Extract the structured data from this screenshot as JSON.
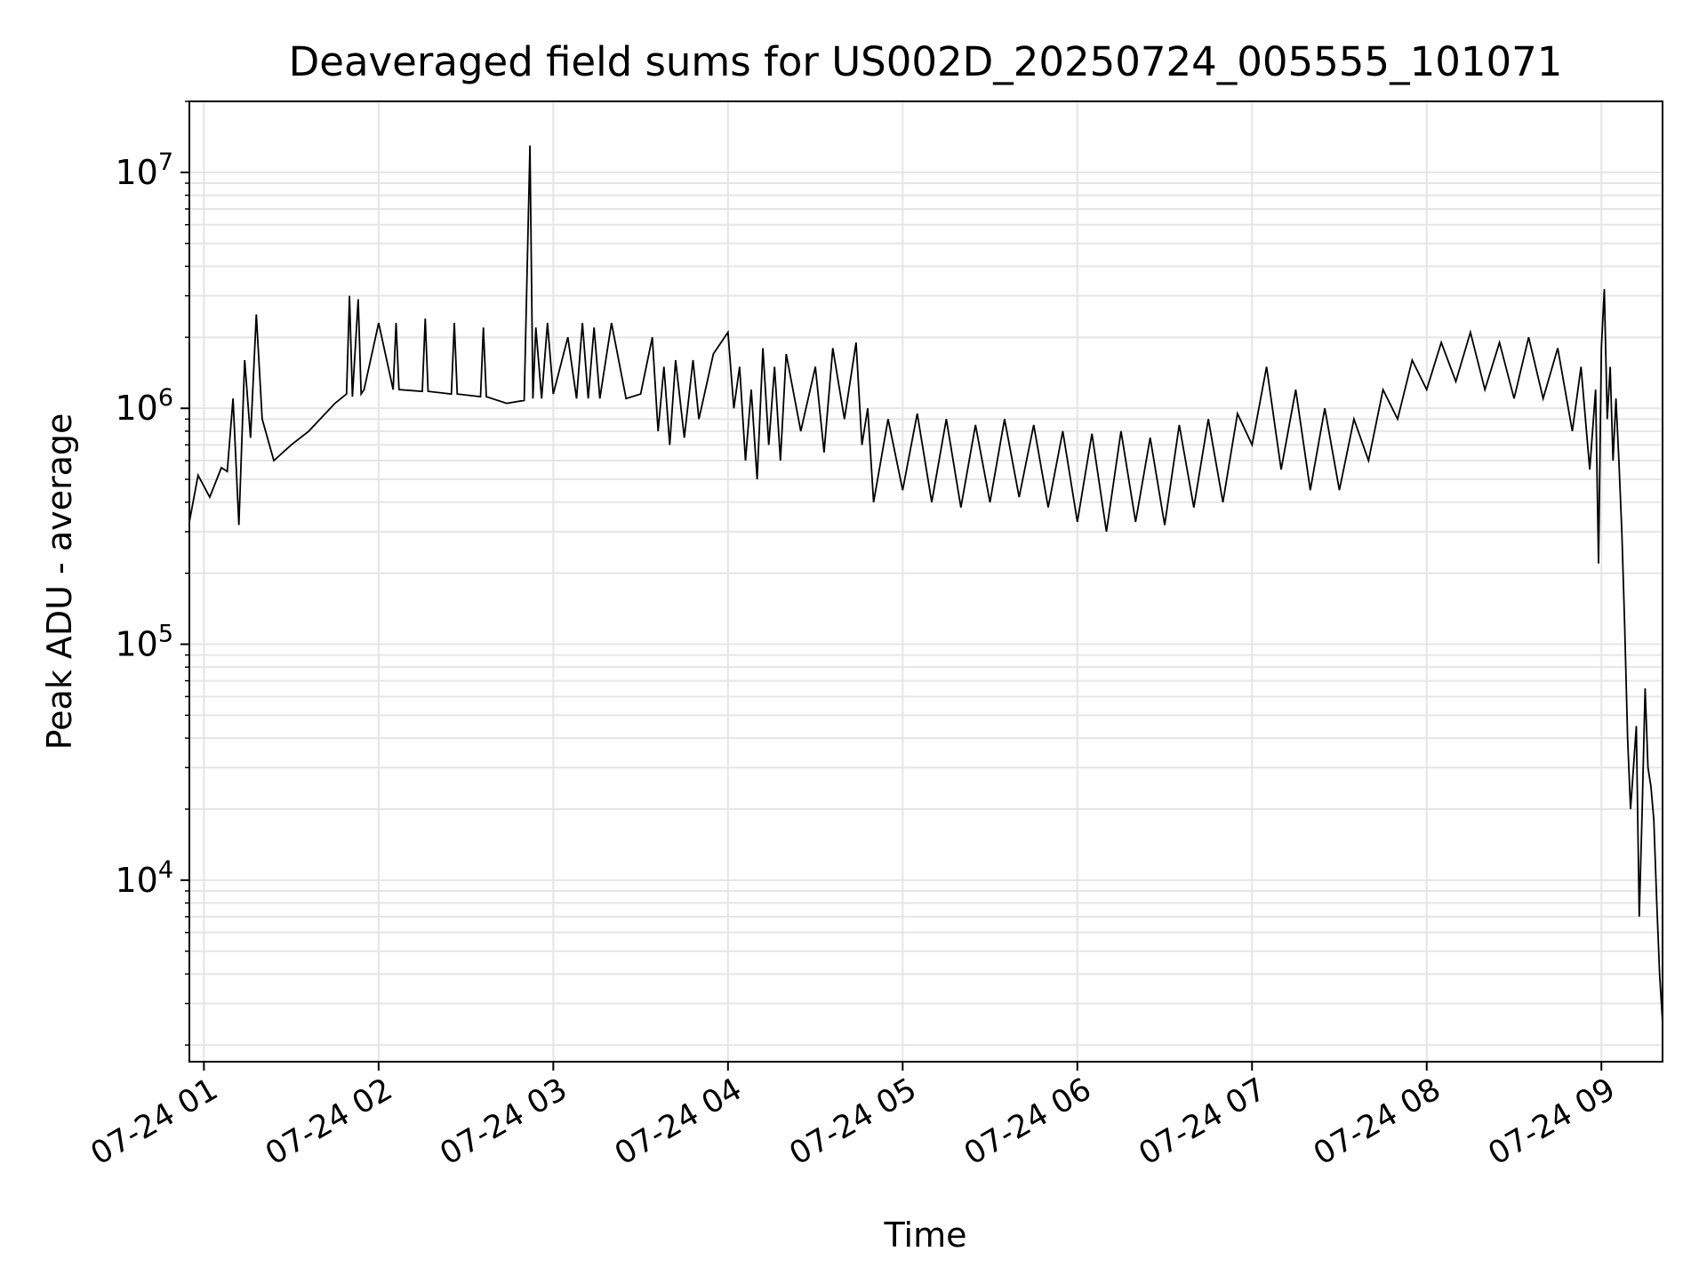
{
  "chart_data": {
    "type": "line",
    "title": "Deaveraged field sums for US002D_20250724_005555_101071",
    "xlabel": "Time",
    "ylabel": "Peak ADU - average",
    "yscale": "log",
    "grid": true,
    "legend": "none",
    "line_color": "#000000",
    "grid_color": "#e5e5e5",
    "xlim": [
      "2025-07-24 00:55",
      "2025-07-24 09:21"
    ],
    "ylim": [
      1700,
      20000000
    ],
    "x_ticks": [
      {
        "label": "07-24 01",
        "time": "2025-07-24 01:00"
      },
      {
        "label": "07-24 02",
        "time": "2025-07-24 02:00"
      },
      {
        "label": "07-24 03",
        "time": "2025-07-24 03:00"
      },
      {
        "label": "07-24 04",
        "time": "2025-07-24 04:00"
      },
      {
        "label": "07-24 05",
        "time": "2025-07-24 05:00"
      },
      {
        "label": "07-24 06",
        "time": "2025-07-24 06:00"
      },
      {
        "label": "07-24 07",
        "time": "2025-07-24 07:00"
      },
      {
        "label": "07-24 08",
        "time": "2025-07-24 08:00"
      },
      {
        "label": "07-24 09",
        "time": "2025-07-24 09:00"
      }
    ],
    "y_ticks": [
      {
        "base": "10",
        "exp": "4",
        "value": 10000
      },
      {
        "base": "10",
        "exp": "5",
        "value": 100000
      },
      {
        "base": "10",
        "exp": "6",
        "value": 1000000
      },
      {
        "base": "10",
        "exp": "7",
        "value": 10000000
      }
    ],
    "series": [
      {
        "x": [
          "2025-07-24 00:55",
          "2025-07-24 00:58",
          "2025-07-24 01:02",
          "2025-07-24 01:06",
          "2025-07-24 01:08",
          "2025-07-24 01:10",
          "2025-07-24 01:12",
          "2025-07-24 01:14",
          "2025-07-24 01:16",
          "2025-07-24 01:18",
          "2025-07-24 01:20",
          "2025-07-24 01:24",
          "2025-07-24 01:30",
          "2025-07-24 01:36",
          "2025-07-24 01:45",
          "2025-07-24 01:49",
          "2025-07-24 01:50",
          "2025-07-24 01:51",
          "2025-07-24 01:53",
          "2025-07-24 01:54",
          "2025-07-24 01:55",
          "2025-07-24 02:00",
          "2025-07-24 02:05",
          "2025-07-24 02:06",
          "2025-07-24 02:07",
          "2025-07-24 02:15",
          "2025-07-24 02:16",
          "2025-07-24 02:17",
          "2025-07-24 02:25",
          "2025-07-24 02:26",
          "2025-07-24 02:27",
          "2025-07-24 02:35",
          "2025-07-24 02:36",
          "2025-07-24 02:37",
          "2025-07-24 02:44",
          "2025-07-24 02:50",
          "2025-07-24 02:52",
          "2025-07-24 02:53",
          "2025-07-24 02:54",
          "2025-07-24 02:56",
          "2025-07-24 02:58",
          "2025-07-24 03:00",
          "2025-07-24 03:05",
          "2025-07-24 03:08",
          "2025-07-24 03:10",
          "2025-07-24 03:12",
          "2025-07-24 03:14",
          "2025-07-24 03:16",
          "2025-07-24 03:20",
          "2025-07-24 03:25",
          "2025-07-24 03:30",
          "2025-07-24 03:34",
          "2025-07-24 03:36",
          "2025-07-24 03:38",
          "2025-07-24 03:40",
          "2025-07-24 03:42",
          "2025-07-24 03:45",
          "2025-07-24 03:48",
          "2025-07-24 03:50",
          "2025-07-24 03:55",
          "2025-07-24 04:00",
          "2025-07-24 04:02",
          "2025-07-24 04:04",
          "2025-07-24 04:06",
          "2025-07-24 04:08",
          "2025-07-24 04:10",
          "2025-07-24 04:12",
          "2025-07-24 04:14",
          "2025-07-24 04:16",
          "2025-07-24 04:18",
          "2025-07-24 04:20",
          "2025-07-24 04:25",
          "2025-07-24 04:30",
          "2025-07-24 04:33",
          "2025-07-24 04:36",
          "2025-07-24 04:40",
          "2025-07-24 04:44",
          "2025-07-24 04:46",
          "2025-07-24 04:48",
          "2025-07-24 04:50",
          "2025-07-24 04:55",
          "2025-07-24 05:00",
          "2025-07-24 05:05",
          "2025-07-24 05:10",
          "2025-07-24 05:15",
          "2025-07-24 05:20",
          "2025-07-24 05:25",
          "2025-07-24 05:30",
          "2025-07-24 05:35",
          "2025-07-24 05:40",
          "2025-07-24 05:45",
          "2025-07-24 05:50",
          "2025-07-24 05:55",
          "2025-07-24 06:00",
          "2025-07-24 06:05",
          "2025-07-24 06:10",
          "2025-07-24 06:15",
          "2025-07-24 06:20",
          "2025-07-24 06:25",
          "2025-07-24 06:30",
          "2025-07-24 06:35",
          "2025-07-24 06:40",
          "2025-07-24 06:45",
          "2025-07-24 06:50",
          "2025-07-24 06:55",
          "2025-07-24 07:00",
          "2025-07-24 07:05",
          "2025-07-24 07:10",
          "2025-07-24 07:15",
          "2025-07-24 07:20",
          "2025-07-24 07:25",
          "2025-07-24 07:30",
          "2025-07-24 07:35",
          "2025-07-24 07:40",
          "2025-07-24 07:45",
          "2025-07-24 07:50",
          "2025-07-24 07:55",
          "2025-07-24 08:00",
          "2025-07-24 08:05",
          "2025-07-24 08:10",
          "2025-07-24 08:15",
          "2025-07-24 08:20",
          "2025-07-24 08:25",
          "2025-07-24 08:30",
          "2025-07-24 08:35",
          "2025-07-24 08:40",
          "2025-07-24 08:45",
          "2025-07-24 08:50",
          "2025-07-24 08:53",
          "2025-07-24 08:56",
          "2025-07-24 08:58",
          "2025-07-24 08:59",
          "2025-07-24 09:00",
          "2025-07-24 09:01",
          "2025-07-24 09:02",
          "2025-07-24 09:03",
          "2025-07-24 09:04",
          "2025-07-24 09:05",
          "2025-07-24 09:06",
          "2025-07-24 09:07",
          "2025-07-24 09:08",
          "2025-07-24 09:09",
          "2025-07-24 09:10",
          "2025-07-24 09:11",
          "2025-07-24 09:12",
          "2025-07-24 09:13",
          "2025-07-24 09:14",
          "2025-07-24 09:15",
          "2025-07-24 09:16",
          "2025-07-24 09:17",
          "2025-07-24 09:18",
          "2025-07-24 09:19",
          "2025-07-24 09:20",
          "2025-07-24 09:21"
        ],
        "values": [
          330000,
          520000,
          420000,
          560000,
          540000,
          1100000,
          320000,
          1600000,
          750000,
          2500000,
          900000,
          600000,
          700000,
          800000,
          1050000,
          1150000,
          3000000,
          1120000,
          2900000,
          1150000,
          1200000,
          2300000,
          1200000,
          2300000,
          1200000,
          1180000,
          2400000,
          1180000,
          1150000,
          2300000,
          1150000,
          1120000,
          2200000,
          1120000,
          1050000,
          1080000,
          13000000,
          1100000,
          2200000,
          1100000,
          2300000,
          1150000,
          2000000,
          1100000,
          2300000,
          1100000,
          2200000,
          1100000,
          2300000,
          1100000,
          1150000,
          2000000,
          800000,
          1500000,
          700000,
          1600000,
          750000,
          1600000,
          900000,
          1700000,
          2100000,
          1000000,
          1500000,
          600000,
          1200000,
          500000,
          1800000,
          700000,
          1500000,
          600000,
          1700000,
          800000,
          1500000,
          650000,
          1800000,
          900000,
          1900000,
          700000,
          1000000,
          400000,
          900000,
          450000,
          950000,
          400000,
          900000,
          380000,
          850000,
          400000,
          900000,
          420000,
          850000,
          380000,
          800000,
          330000,
          780000,
          300000,
          800000,
          330000,
          750000,
          320000,
          850000,
          380000,
          900000,
          400000,
          950000,
          700000,
          1500000,
          550000,
          1200000,
          450000,
          1000000,
          450000,
          900000,
          600000,
          1200000,
          900000,
          1600000,
          1200000,
          1900000,
          1300000,
          2100000,
          1200000,
          1900000,
          1100000,
          2000000,
          1100000,
          1800000,
          800000,
          1500000,
          550000,
          1200000,
          220000,
          1800000,
          3200000,
          900000,
          1500000,
          600000,
          1100000,
          600000,
          300000,
          120000,
          40000,
          20000,
          30000,
          45000,
          7000,
          20000,
          65000,
          30000,
          25000,
          18000,
          8000,
          4000,
          2500
        ]
      }
    ]
  }
}
